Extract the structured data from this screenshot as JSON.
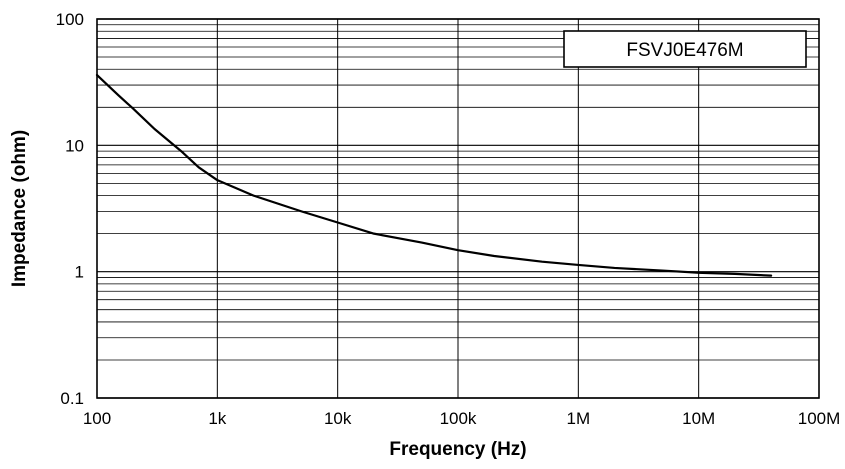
{
  "chart_data": {
    "type": "line",
    "title": "",
    "xlabel": "Frequency (Hz)",
    "ylabel": "Impedance (ohm)",
    "x_scale": "log",
    "y_scale": "log",
    "xlim": [
      100,
      100000000
    ],
    "ylim": [
      0.1,
      100
    ],
    "x_ticks": [
      100,
      1000,
      10000,
      100000,
      1000000,
      10000000,
      100000000
    ],
    "x_tick_labels": [
      "100",
      "1k",
      "10k",
      "100k",
      "1M",
      "10M",
      "100M"
    ],
    "y_ticks": [
      0.1,
      1,
      10,
      100
    ],
    "y_tick_labels": [
      "0.1",
      "1",
      "10",
      "100"
    ],
    "grid": true,
    "legend_position": "top-right",
    "series": [
      {
        "name": "FSVJ0E476M",
        "color": "#000000",
        "x": [
          100,
          150,
          200,
          300,
          500,
          700,
          1000,
          2000,
          5000,
          10000,
          20000,
          50000,
          100000,
          200000,
          500000,
          1000000,
          2000000,
          5000000,
          10000000,
          20000000,
          40000000
        ],
        "y": [
          36,
          25,
          19.5,
          13.5,
          9,
          6.7,
          5.3,
          4.0,
          3.0,
          2.45,
          2.0,
          1.7,
          1.48,
          1.33,
          1.2,
          1.13,
          1.07,
          1.02,
          0.98,
          0.96,
          0.93
        ]
      }
    ]
  }
}
